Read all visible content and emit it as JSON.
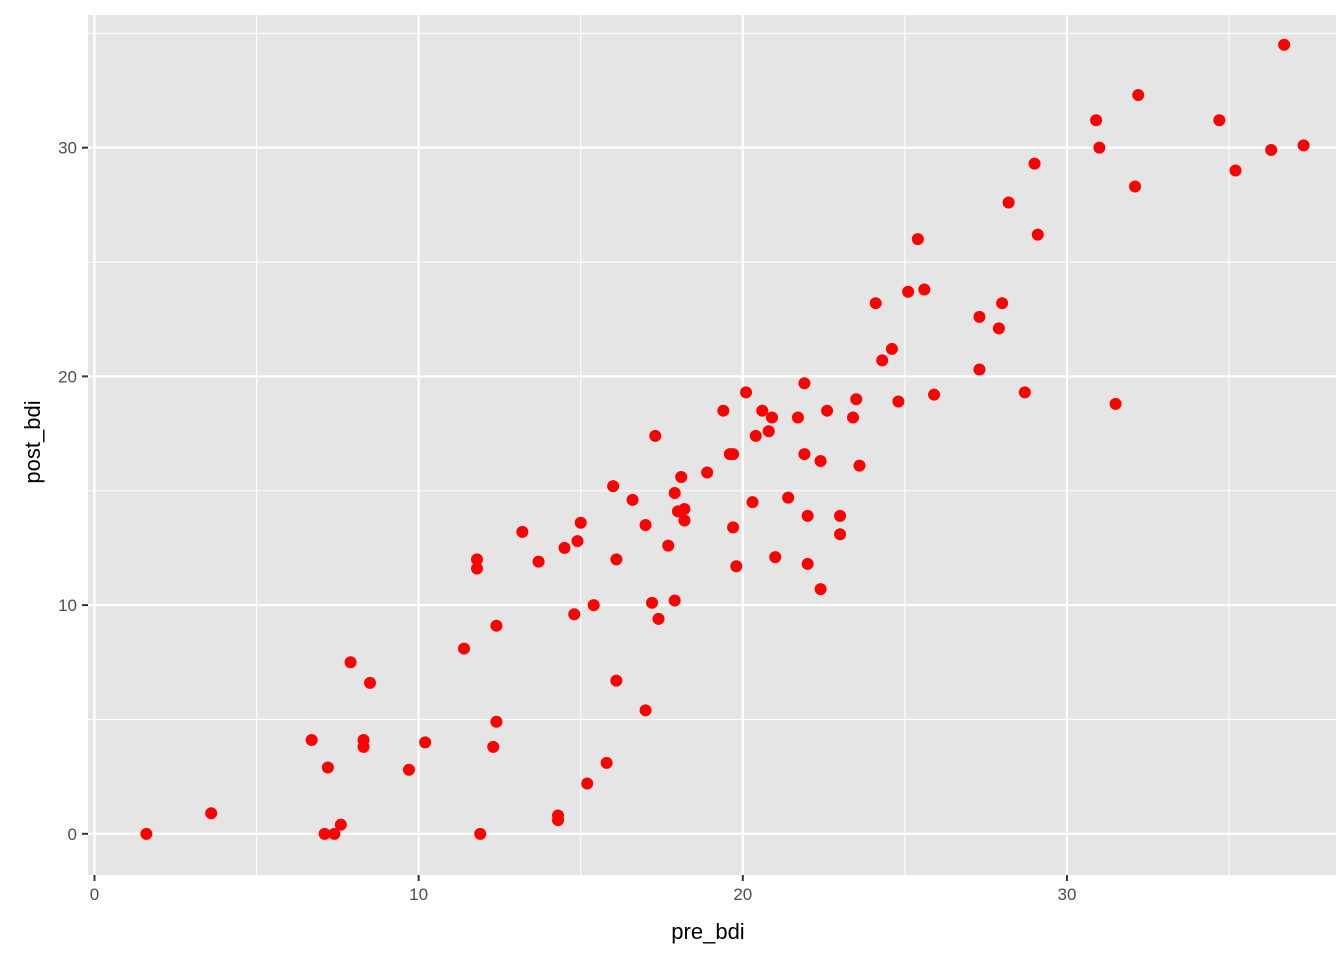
{
  "chart_data": {
    "type": "scatter",
    "xlabel": "pre_bdi",
    "ylabel": "post_bdi",
    "xlim": [
      -0.2,
      38.3
    ],
    "ylim": [
      -1.8,
      35.8
    ],
    "x_ticks": [
      0,
      10,
      20,
      30
    ],
    "y_ticks": [
      0,
      10,
      20,
      30
    ],
    "x_tick_labels": [
      "0",
      "10",
      "20",
      "30"
    ],
    "y_tick_labels": [
      "0",
      "10",
      "20",
      "30"
    ],
    "x_minor": [
      5,
      15,
      25,
      35
    ],
    "y_minor": [
      5,
      15,
      25,
      35
    ],
    "grid": true,
    "point_color": "#ff0000",
    "panel_color": "#e5e5e5",
    "points": [
      [
        1.6,
        0.0
      ],
      [
        3.6,
        0.9
      ],
      [
        6.7,
        4.1
      ],
      [
        7.1,
        0.0
      ],
      [
        7.2,
        2.9
      ],
      [
        7.4,
        0.0
      ],
      [
        7.6,
        0.4
      ],
      [
        7.9,
        7.5
      ],
      [
        8.3,
        4.1
      ],
      [
        8.3,
        3.8
      ],
      [
        8.5,
        6.6
      ],
      [
        9.7,
        2.8
      ],
      [
        10.2,
        4.0
      ],
      [
        11.4,
        8.1
      ],
      [
        11.8,
        11.6
      ],
      [
        11.8,
        12.0
      ],
      [
        11.9,
        0.0
      ],
      [
        12.3,
        3.8
      ],
      [
        12.4,
        9.1
      ],
      [
        12.4,
        4.9
      ],
      [
        13.2,
        13.2
      ],
      [
        13.7,
        11.9
      ],
      [
        14.3,
        0.6
      ],
      [
        14.3,
        0.8
      ],
      [
        14.5,
        12.5
      ],
      [
        14.8,
        9.6
      ],
      [
        14.9,
        12.8
      ],
      [
        15.0,
        13.6
      ],
      [
        15.2,
        2.2
      ],
      [
        15.4,
        10.0
      ],
      [
        15.8,
        3.1
      ],
      [
        16.0,
        15.2
      ],
      [
        16.1,
        12.0
      ],
      [
        16.1,
        6.7
      ],
      [
        16.6,
        14.6
      ],
      [
        17.0,
        5.4
      ],
      [
        17.0,
        13.5
      ],
      [
        17.2,
        10.1
      ],
      [
        17.3,
        17.4
      ],
      [
        17.4,
        9.4
      ],
      [
        17.7,
        12.6
      ],
      [
        17.9,
        14.9
      ],
      [
        17.9,
        10.2
      ],
      [
        18.0,
        14.1
      ],
      [
        18.1,
        15.6
      ],
      [
        18.2,
        14.2
      ],
      [
        18.2,
        13.7
      ],
      [
        18.9,
        15.8
      ],
      [
        19.4,
        18.5
      ],
      [
        19.6,
        16.6
      ],
      [
        19.7,
        16.6
      ],
      [
        19.7,
        13.4
      ],
      [
        19.8,
        11.7
      ],
      [
        20.1,
        19.3
      ],
      [
        20.3,
        14.5
      ],
      [
        20.4,
        17.4
      ],
      [
        20.6,
        18.5
      ],
      [
        20.8,
        17.6
      ],
      [
        20.9,
        18.2
      ],
      [
        21.0,
        12.1
      ],
      [
        21.4,
        14.7
      ],
      [
        21.7,
        18.2
      ],
      [
        21.9,
        19.7
      ],
      [
        21.9,
        16.6
      ],
      [
        22.0,
        13.9
      ],
      [
        22.0,
        11.8
      ],
      [
        22.4,
        16.3
      ],
      [
        22.4,
        10.7
      ],
      [
        22.6,
        18.5
      ],
      [
        23.0,
        13.9
      ],
      [
        23.0,
        13.1
      ],
      [
        23.4,
        18.2
      ],
      [
        23.5,
        19.0
      ],
      [
        23.6,
        16.1
      ],
      [
        24.1,
        23.2
      ],
      [
        24.3,
        20.7
      ],
      [
        24.6,
        21.2
      ],
      [
        24.8,
        18.9
      ],
      [
        25.1,
        23.7
      ],
      [
        25.4,
        26.0
      ],
      [
        25.6,
        23.8
      ],
      [
        25.9,
        19.2
      ],
      [
        27.3,
        22.6
      ],
      [
        27.3,
        20.3
      ],
      [
        27.9,
        22.1
      ],
      [
        28.0,
        23.2
      ],
      [
        28.2,
        27.6
      ],
      [
        28.7,
        19.3
      ],
      [
        29.0,
        29.3
      ],
      [
        29.1,
        26.2
      ],
      [
        30.9,
        31.2
      ],
      [
        31.0,
        30.0
      ],
      [
        31.5,
        18.8
      ],
      [
        32.1,
        28.3
      ],
      [
        32.2,
        32.3
      ],
      [
        34.7,
        31.2
      ],
      [
        35.2,
        29.0
      ],
      [
        36.3,
        29.9
      ],
      [
        36.7,
        34.5
      ],
      [
        37.3,
        30.1
      ]
    ]
  }
}
